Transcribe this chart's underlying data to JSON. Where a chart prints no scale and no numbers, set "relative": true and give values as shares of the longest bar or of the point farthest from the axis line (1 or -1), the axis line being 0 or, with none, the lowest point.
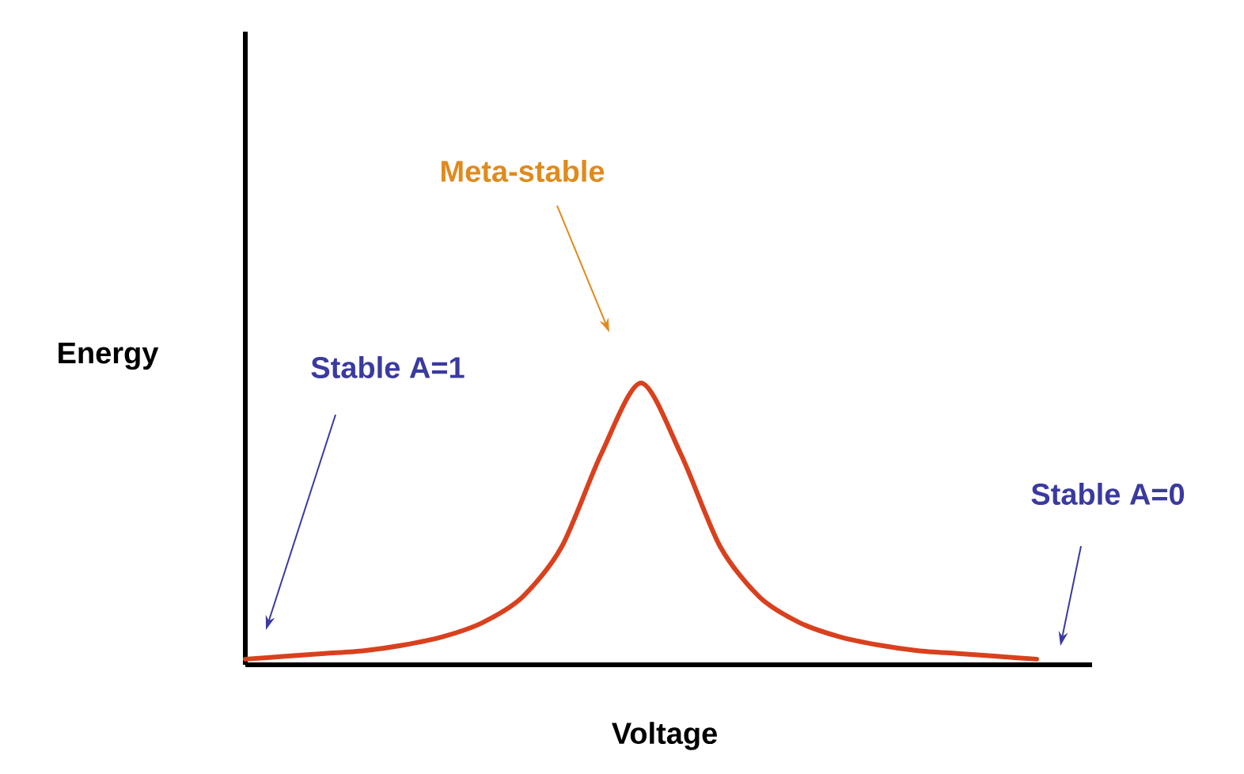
{
  "chart_data": {
    "type": "line",
    "relative": true,
    "xlabel": "Voltage",
    "ylabel": "Energy",
    "categories": [
      null,
      null,
      null,
      null,
      null,
      null,
      null,
      null,
      null,
      null,
      null,
      null,
      null,
      null,
      null,
      null,
      null,
      null,
      null,
      null,
      null
    ],
    "series": [
      {
        "color": "#d9411e",
        "values": [
          0.02,
          0.03,
          0.04,
          0.05,
          0.07,
          0.1,
          0.15,
          0.24,
          0.42,
          0.75,
          1.0,
          0.75,
          0.42,
          0.24,
          0.15,
          0.1,
          0.07,
          0.05,
          0.04,
          0.03,
          0.02
        ]
      }
    ],
    "annotations": [
      "Meta-stable",
      "Stable A=1",
      "Stable A=0"
    ]
  }
}
